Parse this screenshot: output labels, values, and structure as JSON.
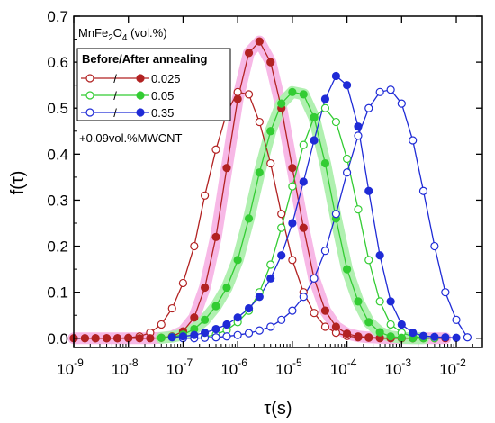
{
  "chart_data": {
    "type": "line",
    "xlabel": "τ(s)",
    "ylabel": "f(τ)",
    "x_scale": "log",
    "xlim": [
      1e-09,
      0.03
    ],
    "ylim": [
      -0.02,
      0.7
    ],
    "x_ticks": [
      {
        "value": 1e-09,
        "label": "10",
        "exp": "-9"
      },
      {
        "value": 1e-08,
        "label": "10",
        "exp": "-8"
      },
      {
        "value": 1e-07,
        "label": "10",
        "exp": "-7"
      },
      {
        "value": 1e-06,
        "label": "10",
        "exp": "-6"
      },
      {
        "value": 1e-05,
        "label": "10",
        "exp": "-5"
      },
      {
        "value": 0.0001,
        "label": "10",
        "exp": "-4"
      },
      {
        "value": 0.001,
        "label": "10",
        "exp": "-3"
      },
      {
        "value": 0.01,
        "label": "10",
        "exp": "-2"
      }
    ],
    "y_ticks": [
      {
        "value": 0.0,
        "label": "0.0"
      },
      {
        "value": 0.1,
        "label": "0.1"
      },
      {
        "value": 0.2,
        "label": "0.2"
      },
      {
        "value": 0.3,
        "label": "0.3"
      },
      {
        "value": 0.4,
        "label": "0.4"
      },
      {
        "value": 0.5,
        "label": "0.5"
      },
      {
        "value": 0.6,
        "label": "0.6"
      },
      {
        "value": 0.7,
        "label": "0.7"
      }
    ],
    "grid": false,
    "legend_position": "top-left",
    "legend": {
      "title": {
        "text": "MnFe",
        "sub1": "2",
        "mid": "O",
        "sub2": "4",
        "tail": " (vol.%)"
      },
      "subtitle": "Before/After annealing",
      "separator": "/",
      "note": "+0.09vol.%MWCNT"
    },
    "series": [
      {
        "name": "0.025",
        "color": "#b22222",
        "pairs": [
          {
            "state": "before",
            "marker": "open",
            "glow": null,
            "x": [
              1e-09,
              1.6e-09,
              2.5e-09,
              4e-09,
              6.3e-09,
              1e-08,
              1.6e-08,
              2.5e-08,
              4e-08,
              6.3e-08,
              1e-07,
              1.6e-07,
              2.5e-07,
              4e-07,
              6.3e-07,
              1e-06,
              1.6e-06,
              2.5e-06,
              4e-06,
              6.3e-06,
              1e-05,
              1.6e-05,
              2.5e-05,
              4e-05,
              6.3e-05,
              0.0001,
              0.00016,
              0.00025,
              0.0004,
              0.00063,
              0.001,
              0.0016
            ],
            "y": [
              0,
              0,
              0,
              0,
              0,
              0.001,
              0.004,
              0.012,
              0.03,
              0.065,
              0.12,
              0.2,
              0.31,
              0.41,
              0.49,
              0.535,
              0.53,
              0.47,
              0.38,
              0.27,
              0.17,
              0.1,
              0.055,
              0.025,
              0.012,
              0.005,
              0.002,
              0.001,
              0,
              0,
              0,
              0
            ]
          },
          {
            "state": "after",
            "marker": "filled",
            "glow": "#f7b8e6",
            "x": [
              1e-09,
              1.6e-09,
              2.5e-09,
              4e-09,
              6.3e-09,
              1e-08,
              1.6e-08,
              2.5e-08,
              4e-08,
              6.3e-08,
              1e-07,
              1.6e-07,
              2.5e-07,
              4e-07,
              6.3e-07,
              1e-06,
              1.6e-06,
              2.5e-06,
              4e-06,
              6.3e-06,
              1e-05,
              1.6e-05,
              2.5e-05,
              4e-05,
              6.3e-05,
              0.0001,
              0.00016,
              0.00025,
              0.0004,
              0.00063,
              0.001,
              0.0016,
              0.0025,
              0.004,
              0.0063
            ],
            "y": [
              0,
              0,
              0,
              0,
              0,
              0,
              0,
              0,
              0.001,
              0.004,
              0.015,
              0.045,
              0.11,
              0.22,
              0.37,
              0.52,
              0.62,
              0.645,
              0.6,
              0.5,
              0.37,
              0.24,
              0.13,
              0.06,
              0.025,
              0.01,
              0.004,
              0.002,
              0.001,
              0,
              0,
              0,
              0,
              0,
              0
            ]
          }
        ]
      },
      {
        "name": "0.05",
        "color": "#33cc33",
        "pairs": [
          {
            "state": "before",
            "marker": "open",
            "glow": null,
            "x": [
              2.5e-07,
              4e-07,
              6.3e-07,
              1e-06,
              1.6e-06,
              2.5e-06,
              4e-06,
              6.3e-06,
              1e-05,
              1.6e-05,
              2.5e-05,
              4e-05,
              6.3e-05,
              0.0001,
              0.00016,
              0.00025,
              0.0004,
              0.00063,
              0.001,
              0.0016,
              0.0025,
              0.004
            ],
            "y": [
              0.003,
              0.008,
              0.018,
              0.035,
              0.06,
              0.1,
              0.16,
              0.24,
              0.33,
              0.42,
              0.48,
              0.5,
              0.47,
              0.39,
              0.28,
              0.17,
              0.08,
              0.03,
              0.012,
              0.004,
              0.001,
              0
            ]
          },
          {
            "state": "after",
            "marker": "filled",
            "glow": "#b0f0b0",
            "x": [
              4e-08,
              6.3e-08,
              1e-07,
              1.6e-07,
              2.5e-07,
              4e-07,
              6.3e-07,
              1e-06,
              1.6e-06,
              2.5e-06,
              4e-06,
              6.3e-06,
              1e-05,
              1.6e-05,
              2.5e-05,
              4e-05,
              6.3e-05,
              0.0001,
              0.00016,
              0.00025,
              0.0004,
              0.00063,
              0.001,
              0.0016,
              0.0025
            ],
            "y": [
              0.001,
              0.003,
              0.008,
              0.02,
              0.04,
              0.07,
              0.11,
              0.17,
              0.26,
              0.36,
              0.45,
              0.51,
              0.535,
              0.53,
              0.48,
              0.38,
              0.26,
              0.15,
              0.08,
              0.035,
              0.013,
              0.004,
              0.001,
              0,
              0
            ]
          }
        ]
      },
      {
        "name": "0.35",
        "color": "#1f2bd6",
        "pairs": [
          {
            "state": "before",
            "marker": "open",
            "glow": null,
            "x": [
              1e-07,
              1.6e-07,
              2.5e-07,
              4e-07,
              6.3e-07,
              1e-06,
              1.6e-06,
              2.5e-06,
              4e-06,
              6.3e-06,
              1e-05,
              1.6e-05,
              2.5e-05,
              4e-05,
              6.3e-05,
              0.0001,
              0.00016,
              0.00025,
              0.0004,
              0.00063,
              0.001,
              0.0016,
              0.0025,
              0.004,
              0.0063,
              0.01,
              0.016
            ],
            "y": [
              0,
              0,
              0.001,
              0.002,
              0.004,
              0.007,
              0.011,
              0.017,
              0.025,
              0.04,
              0.06,
              0.09,
              0.13,
              0.19,
              0.27,
              0.36,
              0.44,
              0.5,
              0.535,
              0.54,
              0.51,
              0.43,
              0.32,
              0.2,
              0.1,
              0.04,
              0.002
            ]
          },
          {
            "state": "after",
            "marker": "filled",
            "glow": null,
            "x": [
              6.3e-08,
              1e-07,
              1.6e-07,
              2.5e-07,
              4e-07,
              6.3e-07,
              1e-06,
              1.6e-06,
              2.5e-06,
              4e-06,
              6.3e-06,
              1e-05,
              1.6e-05,
              2.5e-05,
              4e-05,
              6.3e-05,
              0.0001,
              0.00016,
              0.00025,
              0.0004,
              0.00063,
              0.001,
              0.0016,
              0.0025,
              0.004,
              0.0063,
              0.01
            ],
            "y": [
              0.002,
              0.004,
              0.007,
              0.012,
              0.02,
              0.03,
              0.045,
              0.065,
              0.09,
              0.13,
              0.18,
              0.25,
              0.34,
              0.43,
              0.52,
              0.57,
              0.55,
              0.46,
              0.32,
              0.18,
              0.08,
              0.03,
              0.012,
              0.005,
              0.003,
              0.002,
              0.001
            ]
          }
        ]
      }
    ]
  }
}
